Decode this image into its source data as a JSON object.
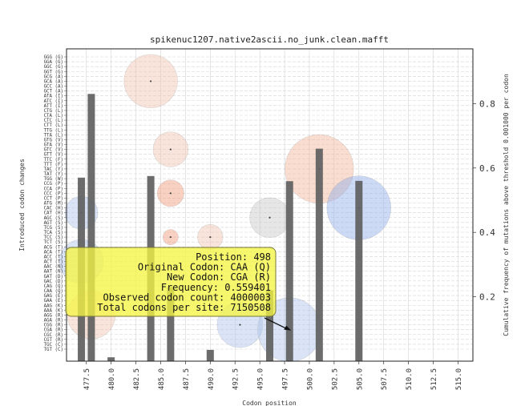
{
  "chart_data": {
    "type": "bar",
    "title": "spikenuc1207.native2ascii.no_junk.clean.mafft",
    "xlabel": "Codon position",
    "ylabel": "Introduced codon changes",
    "ylabel_right": "Cumulative frequency of mutations above threshold 0.001000 per codon",
    "xlim": [
      475.5,
      516.5
    ],
    "ylim": [
      0,
      0.97
    ],
    "x_ticks": [
      477.5,
      480.0,
      482.5,
      485.0,
      487.5,
      490.0,
      492.5,
      495.0,
      497.5,
      500.0,
      502.5,
      505.0,
      507.5,
      510.0,
      512.5,
      515.0
    ],
    "x_tick_labels": [
      "477.5",
      "480.0",
      "482.5",
      "485.0",
      "487.5",
      "490.0",
      "492.5",
      "495.0",
      "497.5",
      "500.0",
      "502.5",
      "505.0",
      "507.5",
      "510.0",
      "512.5",
      "515.0"
    ],
    "y_right_ticks": [
      0.2,
      0.4,
      0.6,
      0.8
    ],
    "y_right_tick_labels": [
      "0.2",
      "0.4",
      "0.6",
      "0.8"
    ],
    "codon_labels": [
      "GGG (G)",
      "GGA (G)",
      "GGC (G)",
      "GGT (G)",
      "GCG (A)",
      "GCA (A)",
      "GCC (A)",
      "GCT (A)",
      "ATA (I)",
      "ATC (I)",
      "ATT (I)",
      "CTG (L)",
      "CTA (L)",
      "CTC (L)",
      "CTT (L)",
      "TTG (L)",
      "TTA (L)",
      "GTG (V)",
      "GTA (V)",
      "GTC (V)",
      "GTT (V)",
      "TTC (F)",
      "TTT (F)",
      "TAC (Y)",
      "TAT (Y)",
      "TGG (W)",
      "CCG (P)",
      "CCA (P)",
      "CCC (P)",
      "CCT (P)",
      "ATG (M)",
      "CAC (H)",
      "CAT (H)",
      "AGC (S)",
      "AGT (S)",
      "TCG (S)",
      "TCA (S)",
      "TCC (S)",
      "TCT (S)",
      "ACG (T)",
      "ACA (T)",
      "ACC (T)",
      "ACT (T)",
      "AAC (N)",
      "AAT (N)",
      "GAT (D)",
      "GAC (D)",
      "CAG (Q)",
      "CAA (Q)",
      "GAG (E)",
      "GAA (E)",
      "AAG (K)",
      "AAA (K)",
      "AGG (R)",
      "AGA (R)",
      "CGG (R)",
      "CGA (R)",
      "CGC (R)",
      "CGT (R)",
      "TGC (C)",
      "TGT (C)"
    ],
    "bars": [
      {
        "x": 477,
        "value": 0.57
      },
      {
        "x": 478,
        "value": 0.83
      },
      {
        "x": 480,
        "value": 0.012
      },
      {
        "x": 484,
        "value": 0.575
      },
      {
        "x": 486,
        "value": 0.23
      },
      {
        "x": 490,
        "value": 0.035
      },
      {
        "x": 496,
        "value": 0.22
      },
      {
        "x": 498,
        "value": 0.559
      },
      {
        "x": 501,
        "value": 0.66
      },
      {
        "x": 505,
        "value": 0.56
      }
    ],
    "bubbles": [
      {
        "x": 477,
        "codon": "CAT (H)",
        "frequency": 0.13,
        "color": "#adc3ec"
      },
      {
        "x": 477,
        "codon": "ACT (T)",
        "frequency": 0.25,
        "color": "#adc3ec"
      },
      {
        "x": 478,
        "codon": "AGG (R)",
        "frequency": 0.3,
        "color": "#f2c3b0"
      },
      {
        "x": 484,
        "codon": "GCA (A)",
        "frequency": 0.38,
        "color": "#f2c3b0"
      },
      {
        "x": 486,
        "codon": "GTC (V)",
        "frequency": 0.15,
        "color": "#f2c3b0"
      },
      {
        "x": 486,
        "codon": "CCC (P)",
        "frequency": 0.08,
        "color": "#f29a7a"
      },
      {
        "x": 486,
        "codon": "TCC (S)",
        "frequency": 0.02,
        "color": "#f29a7a"
      },
      {
        "x": 490,
        "codon": "TCC (S)",
        "frequency": 0.07,
        "color": "#f2c3b0"
      },
      {
        "x": 493,
        "codon": "CGG (R)",
        "frequency": 0.27,
        "color": "#adc3ec"
      },
      {
        "x": 496,
        "codon": "AGC (S)",
        "frequency": 0.2,
        "color": "#c8c8c8"
      },
      {
        "x": 498,
        "codon": "CGA (R)",
        "frequency": 0.559401,
        "color": "#adc3ec"
      },
      {
        "x": 501,
        "codon": "TAC (Y)",
        "frequency": 0.65,
        "color": "#f2b496"
      },
      {
        "x": 505,
        "codon": "CAC (H)",
        "frequency": 0.56,
        "color": "#8eacea"
      }
    ],
    "grid": true,
    "colors": {
      "bar": "#606060",
      "grid": "#d4d4d4",
      "tooltip": "#f5f545"
    },
    "tooltip": {
      "anchor_x": 498,
      "anchor_codon": "CGA (R)",
      "lines": [
        "Position: 498",
        "Original Codon: CAA (Q)",
        "New Codon: CGA (R)",
        "Frequency: 0.559401",
        "Observed codon count: 4000003",
        "Total codons per site: 7150508"
      ]
    }
  }
}
